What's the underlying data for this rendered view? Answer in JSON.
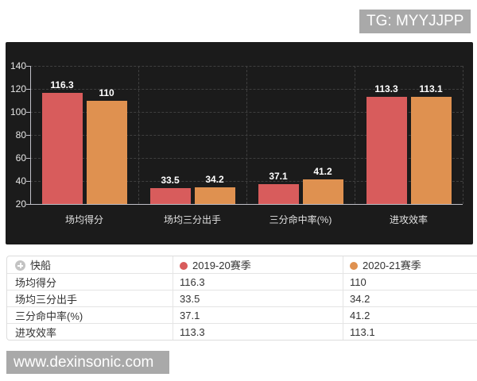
{
  "badges": {
    "tg": "TG: MYYJJPP",
    "site": "www.dexinsonic.com"
  },
  "chart_data": {
    "type": "bar",
    "title": "",
    "categories": [
      "场均得分",
      "场均三分出手",
      "三分命中率(%)",
      "进攻效率"
    ],
    "series": [
      {
        "name": "2019-20赛季",
        "color": "#d85c5c",
        "values": [
          116.3,
          33.5,
          37.1,
          113.3
        ]
      },
      {
        "name": "2020-21赛季",
        "color": "#df9150",
        "values": [
          110,
          34.2,
          41.2,
          113.1
        ]
      }
    ],
    "ylim": [
      20,
      140
    ],
    "yticks": [
      20,
      40,
      60,
      80,
      100,
      120,
      140
    ],
    "grid": "dashed-horizontal-and-vertical-splits",
    "legend_position": "table-header",
    "background": "#1b1b1b",
    "value_labels": true
  },
  "table": {
    "entity": "快船",
    "season1": "2019-20赛季",
    "season2": "2020-21赛季",
    "rows": [
      {
        "label": "场均得分",
        "s1": "116.3",
        "s2": "110"
      },
      {
        "label": "场均三分出手",
        "s1": "33.5",
        "s2": "34.2"
      },
      {
        "label": "三分命中率(%)",
        "s1": "37.1",
        "s2": "41.2"
      },
      {
        "label": "进攻效率",
        "s1": "113.3",
        "s2": "113.1"
      }
    ]
  }
}
